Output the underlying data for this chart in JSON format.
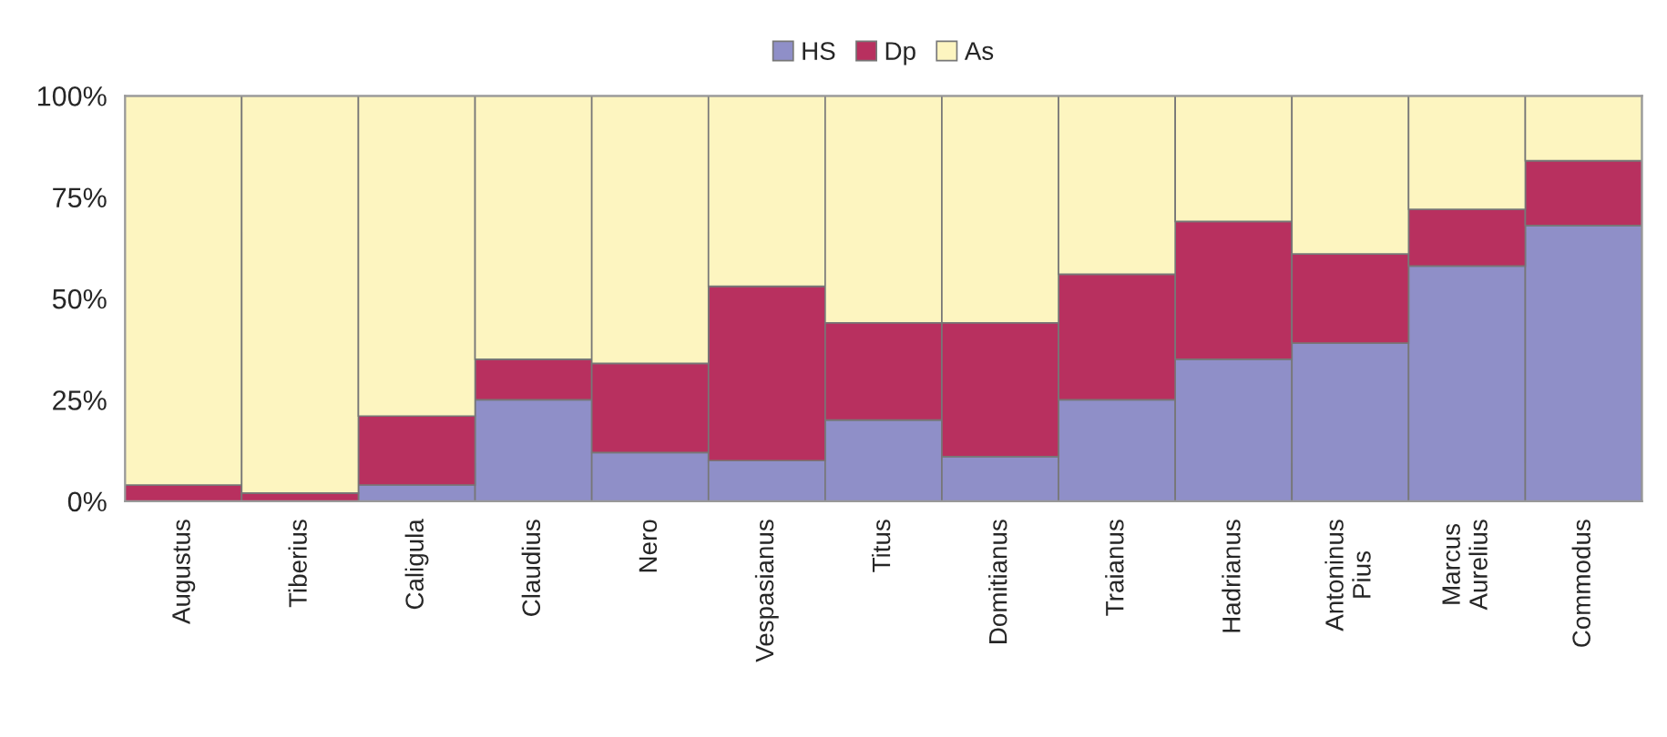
{
  "chart_data": {
    "type": "bar",
    "stacked": true,
    "legend": "top",
    "categories": [
      "Augustus",
      "Tiberius",
      "Caligula",
      "Claudius",
      "Nero",
      "Vespasianus",
      "Titus",
      "Domitianus",
      "Traianus",
      "Hadrianus",
      "Antoninus\nPius",
      "Marcus\nAurelius",
      "Commodus"
    ],
    "series": [
      {
        "name": "HS",
        "color": "#8f8fc8",
        "values": [
          0,
          0,
          4,
          25,
          12,
          10,
          20,
          11,
          25,
          35,
          39,
          58,
          68
        ]
      },
      {
        "name": "Dp",
        "color": "#b8305f",
        "values": [
          4,
          2,
          17,
          10,
          22,
          43,
          24,
          33,
          31,
          34,
          22,
          14,
          16
        ]
      },
      {
        "name": "As",
        "color": "#fdf5c0",
        "values": [
          96,
          98,
          79,
          65,
          66,
          47,
          56,
          56,
          44,
          31,
          39,
          28,
          16
        ]
      }
    ],
    "ylim": [
      0,
      100
    ],
    "yticks": [
      {
        "value": 0,
        "label": "0%"
      },
      {
        "value": 25,
        "label": "25%"
      },
      {
        "value": 50,
        "label": "50%"
      },
      {
        "value": 75,
        "label": "75%"
      },
      {
        "value": 100,
        "label": "100%"
      }
    ]
  }
}
